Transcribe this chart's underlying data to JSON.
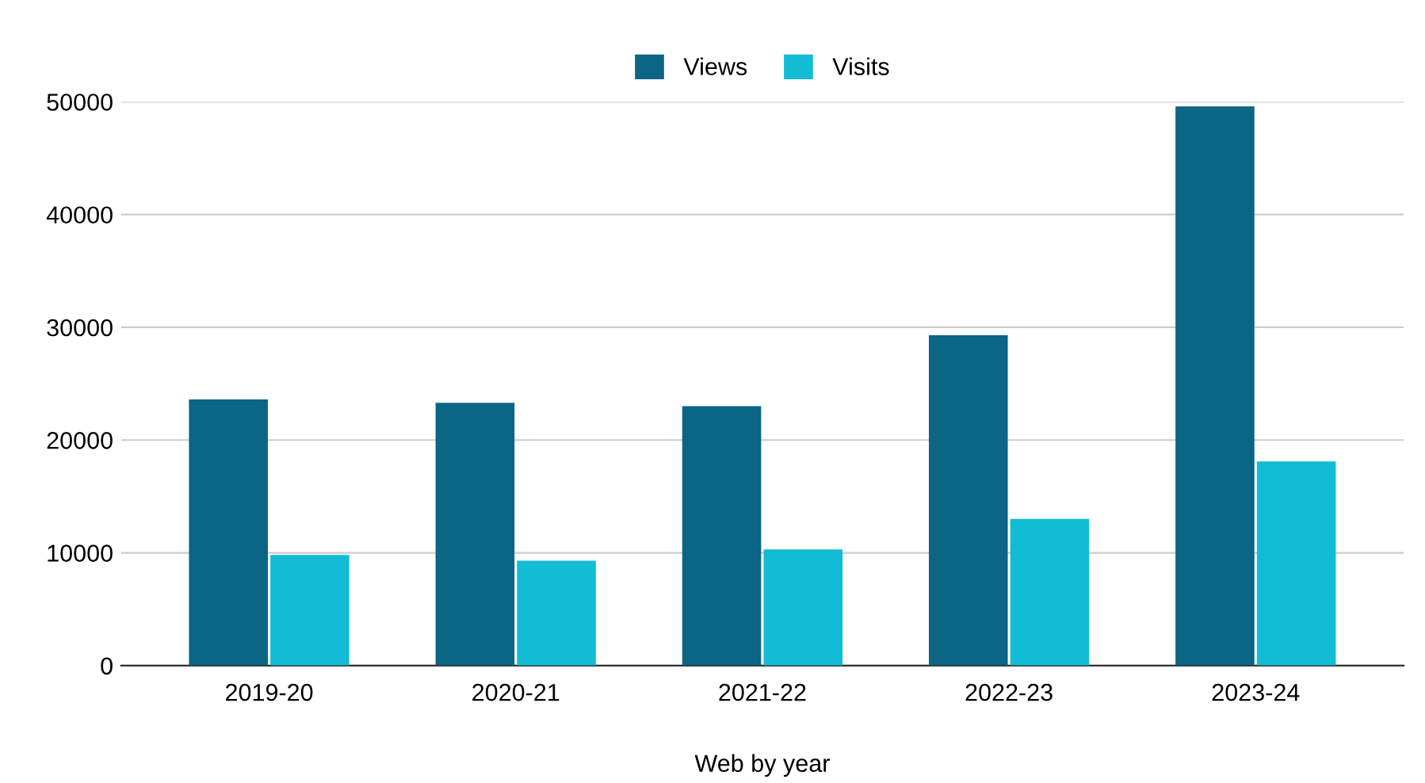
{
  "chart_data": {
    "type": "bar",
    "xlabel": "Web by year",
    "categories": [
      "2019-20",
      "2020-21",
      "2021-22",
      "2022-23",
      "2023-24"
    ],
    "series": [
      {
        "name": "Views",
        "color": "#0b6584",
        "values": [
          23600,
          23300,
          23000,
          29300,
          49600
        ]
      },
      {
        "name": "Visits",
        "color": "#12bcd4",
        "values": [
          9800,
          9300,
          10300,
          13000,
          18100
        ]
      }
    ],
    "ylim": [
      0,
      50000
    ],
    "yticks": [
      0,
      10000,
      20000,
      30000,
      40000,
      50000
    ],
    "grid": "y",
    "legend": "top"
  }
}
